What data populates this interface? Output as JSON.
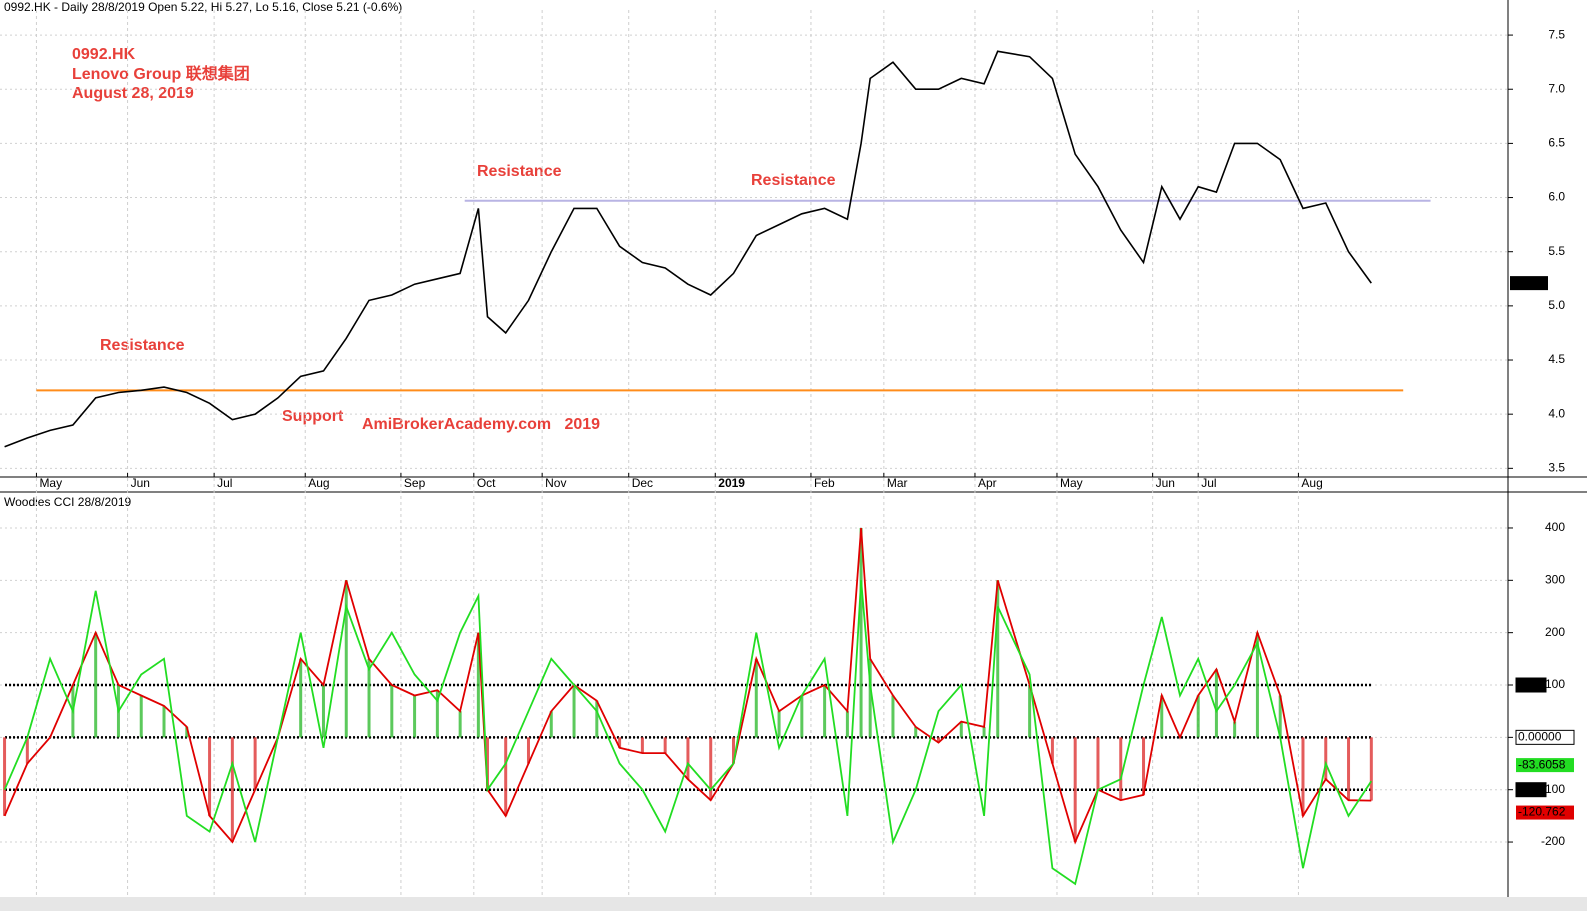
{
  "chart_data": [
    {
      "type": "line",
      "title": "0992.HK - Daily 28/8/2019 Open 5.22, Hi 5.27, Lo 5.16, Close 5.21 (-0.6%)",
      "header": [
        "0992.HK",
        "Lenovo Group 联想集团",
        "August 28, 2019"
      ],
      "annotations": [
        "Resistance",
        "Resistance",
        "Resistance",
        "Support",
        "AmiBrokerAcademy.com   2019"
      ],
      "x": [
        0,
        5,
        10,
        15,
        20,
        25,
        30,
        35,
        40,
        45,
        50,
        55,
        60,
        65,
        70,
        75,
        80,
        85,
        90,
        95,
        100,
        104,
        106,
        110,
        115,
        120,
        125,
        130,
        135,
        140,
        145,
        150,
        155,
        160,
        165,
        170,
        175,
        180,
        185,
        188,
        190,
        195,
        200,
        205,
        210,
        215,
        218,
        225,
        230,
        235,
        240,
        245,
        250,
        254,
        258,
        262,
        266,
        270,
        275,
        280,
        285,
        290,
        295,
        300
      ],
      "series": [
        {
          "color": "#000000",
          "values": [
            3.7,
            3.78,
            3.85,
            3.9,
            4.15,
            4.2,
            4.22,
            4.25,
            4.2,
            4.1,
            3.95,
            4.0,
            4.15,
            4.35,
            4.4,
            4.7,
            5.05,
            5.1,
            5.2,
            5.25,
            5.3,
            5.9,
            4.9,
            4.75,
            5.05,
            5.5,
            5.9,
            5.9,
            5.55,
            5.4,
            5.35,
            5.2,
            5.1,
            5.3,
            5.65,
            5.75,
            5.85,
            5.9,
            5.8,
            6.5,
            7.1,
            7.25,
            7.0,
            7.0,
            7.1,
            7.05,
            7.35,
            7.3,
            7.1,
            6.4,
            6.1,
            5.7,
            5.4,
            6.1,
            5.8,
            6.1,
            6.05,
            6.5,
            6.5,
            6.35,
            5.9,
            5.95,
            5.5,
            5.21
          ]
        }
      ],
      "hlines": [
        {
          "value": 5.97,
          "x": [
            101,
            313
          ],
          "color": "#b8b4e4"
        },
        {
          "value": 4.22,
          "x": [
            7,
            307
          ],
          "color": "#ff8c1a"
        }
      ],
      "last_value": 5.21,
      "xlim": [
        -1,
        330
      ],
      "ylim": [
        3.42,
        7.63
      ],
      "xticks": [
        {
          "value": 7,
          "label": "May"
        },
        {
          "value": 27,
          "label": "Jun"
        },
        {
          "value": 46,
          "label": "Jul"
        },
        {
          "value": 66,
          "label": "Aug"
        },
        {
          "value": 87,
          "label": "Sep"
        },
        {
          "value": 103,
          "label": "Oct"
        },
        {
          "value": 118,
          "label": "Nov"
        },
        {
          "value": 137,
          "label": "Dec"
        },
        {
          "value": 156,
          "label": "2019"
        },
        {
          "value": 177,
          "label": "Feb"
        },
        {
          "value": 193,
          "label": "Mar"
        },
        {
          "value": 213,
          "label": "Apr"
        },
        {
          "value": 231,
          "label": "May"
        },
        {
          "value": 252,
          "label": "Jun"
        },
        {
          "value": 262,
          "label": "Jul"
        },
        {
          "value": 284,
          "label": "Aug"
        }
      ],
      "yticks": [
        3.5,
        {
          "value": 4,
          "label": "4.0"
        },
        4.5,
        {
          "value": 5,
          "label": "5.0"
        },
        5.5,
        {
          "value": 6,
          "label": "6.0"
        },
        6.5,
        {
          "value": 7,
          "label": "7.0"
        },
        7.5
      ],
      "grid": true
    },
    {
      "type": "line",
      "title": "Woodies CCI  28/8/2019",
      "x": [
        0,
        5,
        10,
        15,
        20,
        25,
        30,
        35,
        40,
        45,
        50,
        55,
        60,
        65,
        70,
        75,
        80,
        85,
        90,
        95,
        100,
        104,
        106,
        110,
        115,
        120,
        125,
        130,
        135,
        140,
        145,
        150,
        155,
        160,
        165,
        170,
        175,
        180,
        185,
        188,
        190,
        195,
        200,
        205,
        210,
        215,
        218,
        225,
        230,
        235,
        240,
        245,
        250,
        254,
        258,
        262,
        266,
        270,
        275,
        280,
        285,
        290,
        295,
        300
      ],
      "series": [
        {
          "color": "#e00000",
          "values": [
            -150,
            -50,
            0,
            100,
            200,
            100,
            80,
            60,
            20,
            -150,
            -200,
            -100,
            0,
            150,
            100,
            300,
            150,
            100,
            80,
            90,
            50,
            200,
            -100,
            -150,
            -50,
            50,
            100,
            70,
            -20,
            -30,
            -30,
            -80,
            -120,
            -50,
            150,
            50,
            80,
            100,
            50,
            400,
            150,
            80,
            20,
            -10,
            30,
            20,
            300,
            100,
            -50,
            -200,
            -100,
            -120,
            -110,
            80,
            0,
            80,
            130,
            30,
            200,
            80,
            -150,
            -80,
            -120,
            -120.762
          ]
        },
        {
          "color": "#22dd22",
          "values": [
            -100,
            0,
            150,
            50,
            280,
            50,
            120,
            150,
            -150,
            -180,
            -50,
            -200,
            0,
            200,
            -20,
            250,
            130,
            200,
            120,
            70,
            200,
            270,
            -100,
            -50,
            50,
            150,
            100,
            50,
            -50,
            -100,
            -180,
            -50,
            -100,
            -50,
            200,
            -20,
            80,
            150,
            -150,
            300,
            100,
            -200,
            -100,
            50,
            100,
            -150,
            250,
            120,
            -250,
            -280,
            -100,
            -80,
            100,
            230,
            80,
            150,
            50,
            100,
            180,
            0,
            -250,
            -50,
            -150,
            -83.6058
          ]
        }
      ],
      "histogram": {
        "series": 0,
        "up_color": "#33bb33",
        "down_color": "#dd3333"
      },
      "hlines": [
        {
          "value": 100,
          "label": "100"
        },
        {
          "value": 0,
          "label": "0.00000"
        },
        {
          "value": -100,
          "label": "-100"
        }
      ],
      "last_values": [
        -83.6058,
        -120.762
      ],
      "xlim": [
        -1,
        330
      ],
      "ylim": [
        -305,
        463
      ],
      "yticks": [
        -200,
        -100,
        0,
        100,
        200,
        300,
        400
      ],
      "grid": true
    }
  ]
}
